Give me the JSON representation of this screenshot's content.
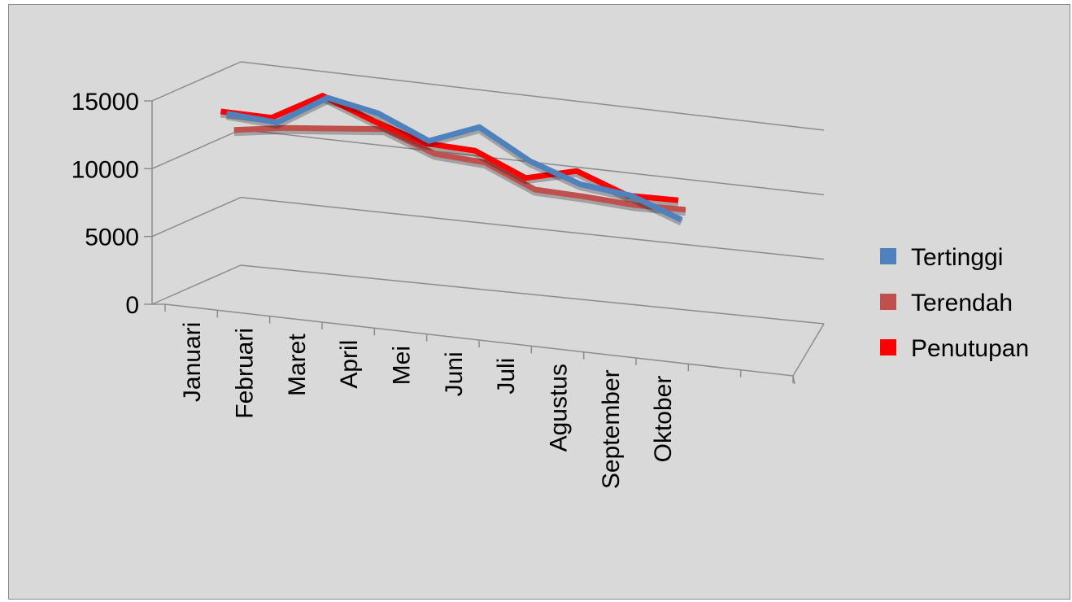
{
  "chart_data": {
    "type": "line",
    "view": "3d",
    "categories": [
      "Januari",
      "Februari",
      "Maret",
      "April",
      "Mei",
      "Juni",
      "Juli",
      "Agustus",
      "September",
      "Oktober"
    ],
    "series": [
      {
        "name": "Tertinggi",
        "color": "#4f81bd",
        "values": [
          12900,
          12700,
          15000,
          14300,
          12700,
          14200,
          12100,
          10800,
          10400,
          9000
        ]
      },
      {
        "name": "Terendah",
        "color": "#c0504d",
        "values": [
          11400,
          12000,
          12400,
          12800,
          11400,
          11200,
          9600,
          9500,
          9300,
          9400
        ]
      },
      {
        "name": "Penutupan",
        "color": "#ff0000",
        "values": [
          13300,
          13300,
          15400,
          14000,
          12800,
          12700,
          11100,
          12100,
          10700,
          10800
        ]
      }
    ],
    "yticks": [
      0,
      5000,
      10000,
      15000
    ],
    "ylim": [
      0,
      20000
    ],
    "grid": true,
    "legend_position": "right"
  }
}
